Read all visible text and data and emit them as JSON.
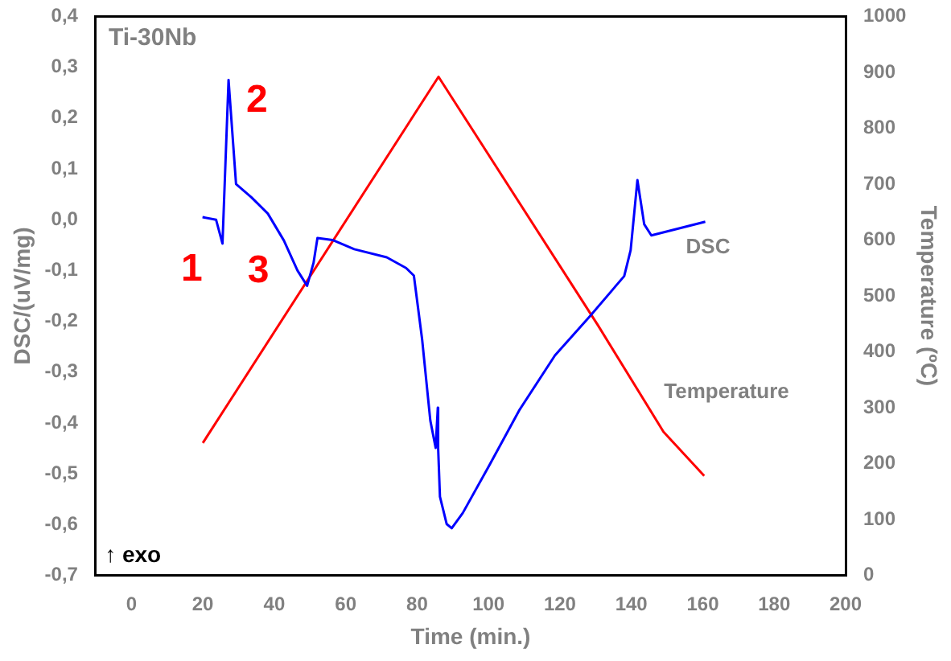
{
  "chart_data": {
    "type": "line",
    "title": "Ti-30Nb",
    "xlabel": "Time (min.)",
    "ylabel": "DSC/(uV/mg)",
    "y2label": "Temperature (ºC)",
    "xlim": [
      -10,
      200
    ],
    "xticks": [
      0,
      20,
      40,
      60,
      80,
      100,
      120,
      140,
      160,
      180,
      200
    ],
    "ylim": [
      -0.7,
      0.4
    ],
    "yticks": [
      {
        "value": -0.7,
        "label": "-0,7"
      },
      {
        "value": -0.6,
        "label": "-0,6"
      },
      {
        "value": -0.5,
        "label": "-0,5"
      },
      {
        "value": -0.4,
        "label": "-0,4"
      },
      {
        "value": -0.3,
        "label": "-0,3"
      },
      {
        "value": -0.2,
        "label": "-0,2"
      },
      {
        "value": -0.1,
        "label": "-0,1"
      },
      {
        "value": 0,
        "label": "0,0"
      },
      {
        "value": 0.1,
        "label": "0,1"
      },
      {
        "value": 0.2,
        "label": "0,2"
      },
      {
        "value": 0.3,
        "label": "0,3"
      },
      {
        "value": 0.4,
        "label": "0,4"
      }
    ],
    "y2lim": [
      0,
      1000
    ],
    "y2ticks": [
      0,
      100,
      200,
      300,
      400,
      500,
      600,
      700,
      800,
      900,
      1000
    ],
    "series": [
      {
        "name": "DSC",
        "color": "#0000ff",
        "x": [
          19.9,
          23.7,
          25.5,
          27.2,
          29.3,
          33.6,
          38.2,
          42.7,
          46.5,
          49.2,
          51,
          52.1,
          56.3,
          62.4,
          71.5,
          76.9,
          79.1,
          81.4,
          83.7,
          85.2,
          85.8,
          85.9,
          86.4,
          88.3,
          89.7,
          92.8,
          100.4,
          108.7,
          118.6,
          128.5,
          138,
          139.8,
          140.2,
          141.7,
          143.6,
          145.6,
          160.7
        ],
        "values": [
          0.005,
          0,
          -0.047,
          0.275,
          0.07,
          0.044,
          0.012,
          -0.041,
          -0.1,
          -0.13,
          -0.085,
          -0.036,
          -0.04,
          -0.058,
          -0.074,
          -0.095,
          -0.11,
          -0.235,
          -0.395,
          -0.449,
          -0.37,
          -0.45,
          -0.545,
          -0.599,
          -0.607,
          -0.577,
          -0.481,
          -0.374,
          -0.267,
          -0.189,
          -0.111,
          -0.06,
          -0.031,
          0.078,
          -0.009,
          -0.031,
          -0.004
        ]
      },
      {
        "name": "Temperature",
        "color": "#ff0000",
        "axis": "y2",
        "x": [
          20,
          86,
          130.7,
          149,
          160.4
        ],
        "values": [
          237,
          892,
          447,
          257,
          178
        ]
      }
    ],
    "annotations": [
      "1",
      "2",
      "3",
      "↑ exo"
    ],
    "legend": false,
    "grid": false
  }
}
